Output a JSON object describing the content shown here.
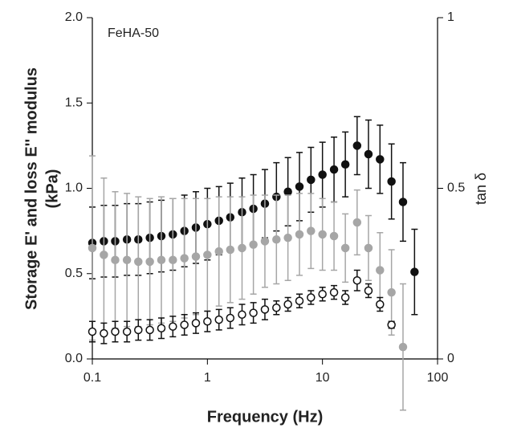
{
  "chart_data": {
    "type": "scatter",
    "annotation": "FeHA-50",
    "xlabel": "Frequency (Hz)",
    "ylabel": "Storage E' and loss E'' modulus",
    "ylabel_unit": "(kPa)",
    "y2label": "tan δ",
    "xlog": true,
    "x": [
      0.1,
      0.126,
      0.158,
      0.2,
      0.251,
      0.316,
      0.398,
      0.501,
      0.631,
      0.794,
      1,
      1.26,
      1.58,
      2,
      2.51,
      3.16,
      3.98,
      5.01,
      6.31,
      7.94,
      10,
      12.6,
      15.8,
      20,
      25.1,
      31.6,
      39.8,
      50.1,
      63.1
    ],
    "xlim": [
      0.1,
      100
    ],
    "xticks": [
      0.1,
      1,
      10,
      100
    ],
    "ylim": [
      0,
      2
    ],
    "yticks": [
      {
        "value": 0,
        "label": "0.0"
      },
      {
        "value": 0.5,
        "label": "0.5"
      },
      {
        "value": 1,
        "label": "1.0"
      },
      {
        "value": 1.5,
        "label": "1.5"
      },
      {
        "value": 2,
        "label": "2.0"
      }
    ],
    "y2lim": [
      0,
      1
    ],
    "y2ticks": [
      0,
      0.5,
      1
    ],
    "series": [
      {
        "color": "#111111",
        "filled": true,
        "values": [
          0.68,
          0.69,
          0.69,
          0.7,
          0.7,
          0.71,
          0.72,
          0.73,
          0.75,
          0.77,
          0.79,
          0.81,
          0.83,
          0.86,
          0.88,
          0.91,
          0.95,
          0.98,
          1.01,
          1.05,
          1.08,
          1.11,
          1.14,
          1.25,
          1.2,
          1.17,
          1.04,
          0.92,
          0.51
        ],
        "errors": [
          0.21,
          0.21,
          0.21,
          0.21,
          0.21,
          0.21,
          0.21,
          0.21,
          0.21,
          0.21,
          0.21,
          0.2,
          0.2,
          0.2,
          0.2,
          0.2,
          0.2,
          0.2,
          0.2,
          0.19,
          0.19,
          0.19,
          0.19,
          0.17,
          0.2,
          0.2,
          0.22,
          0.23,
          0.25
        ]
      },
      {
        "color": "#a6a6a6",
        "filled": true,
        "values": [
          0.65,
          0.61,
          0.58,
          0.58,
          0.57,
          0.57,
          0.58,
          0.58,
          0.59,
          0.6,
          0.61,
          0.63,
          0.64,
          0.65,
          0.67,
          0.69,
          0.7,
          0.71,
          0.73,
          0.75,
          0.73,
          0.72,
          0.65,
          0.8,
          0.65,
          0.52,
          0.39,
          0.07
        ],
        "errors": [
          0.54,
          0.45,
          0.4,
          0.39,
          0.38,
          0.37,
          0.37,
          0.36,
          0.35,
          0.34,
          0.33,
          0.32,
          0.31,
          0.3,
          0.29,
          0.27,
          0.26,
          0.25,
          0.24,
          0.22,
          0.21,
          0.2,
          0.2,
          0.19,
          0.19,
          0.22,
          0.25,
          0.37
        ]
      },
      {
        "color": "#111111",
        "filled": false,
        "axis": "y2",
        "values": [
          0.08,
          0.075,
          0.08,
          0.08,
          0.085,
          0.085,
          0.09,
          0.095,
          0.1,
          0.105,
          0.11,
          0.115,
          0.12,
          0.13,
          0.135,
          0.145,
          0.15,
          0.16,
          0.17,
          0.18,
          0.19,
          0.195,
          0.18,
          0.23,
          0.2,
          0.16,
          0.1
        ],
        "errors": [
          0.03,
          0.03,
          0.03,
          0.03,
          0.03,
          0.03,
          0.03,
          0.03,
          0.03,
          0.03,
          0.03,
          0.03,
          0.03,
          0.03,
          0.03,
          0.03,
          0.02,
          0.02,
          0.02,
          0.02,
          0.02,
          0.02,
          0.02,
          0.03,
          0.02,
          0.02,
          0.01
        ]
      }
    ]
  }
}
